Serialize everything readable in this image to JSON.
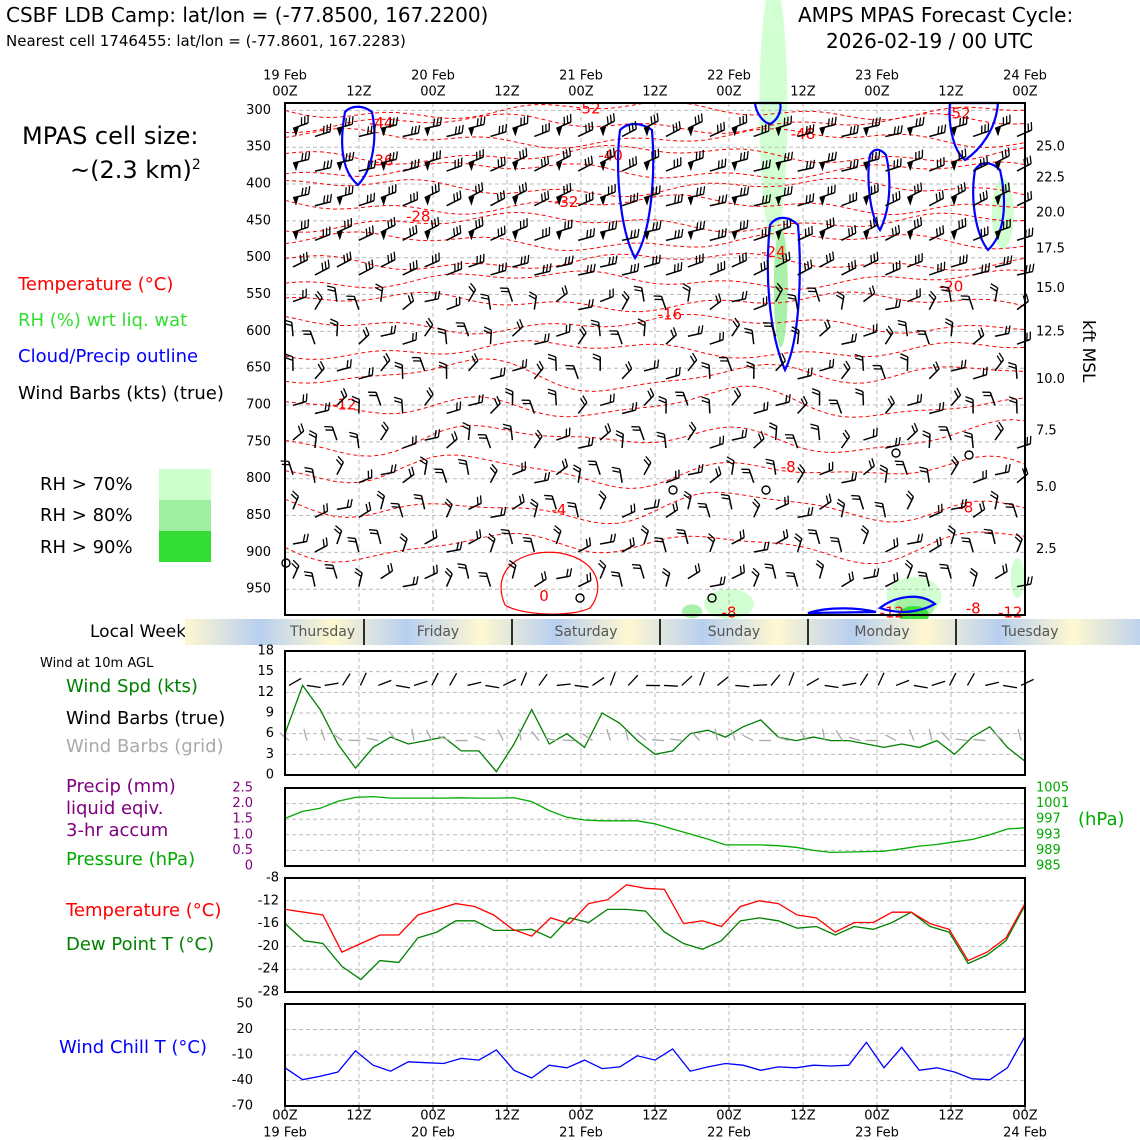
{
  "header": {
    "title_left": "CSBF LDB Camp: lat/lon = (-77.8500, 167.2200)",
    "subtitle_left": "Nearest cell 1746455: lat/lon = (-77.8601, 167.2283)",
    "title_right_1": "AMPS MPAS Forecast Cycle:",
    "title_right_2": "2026-02-19 / 00 UTC"
  },
  "legend": {
    "cell_size_1": "MPAS cell size:",
    "cell_size_2": "~(2.3 km)",
    "cell_size_sup": "2",
    "temperature": "Temperature (°C)",
    "rh": "RH (%) wrt liq. wat",
    "cloud": "Cloud/Precip outline",
    "barbs": "Wind Barbs (kts) (true)",
    "rh70": "RH > 70%",
    "rh80": "RH > 80%",
    "rh90": "RH > 90%",
    "weekday_label": "Local Weekday",
    "wind10m": "Wind at 10m AGL",
    "wind_spd": "Wind Spd (kts)",
    "barbs_true": "Wind Barbs (true)",
    "barbs_grid": "Wind Barbs (grid)",
    "precip_1": "Precip (mm)",
    "precip_2": "liquid eqiv.",
    "precip_3": "3-hr accum",
    "pressure": "Pressure (hPa)",
    "temp2": "Temperature (°C)",
    "dew": "Dew Point T (°C)",
    "windchill": "Wind Chill T (°C)",
    "kft": "kft MSL",
    "hpa": "(hPa)"
  },
  "colors": {
    "temp": "#ff0000",
    "rh_text": "#33dd33",
    "cloud": "#0000ff",
    "wind_spd": "#008000",
    "dew": "#008000",
    "precip": "#800080",
    "pressure": "#00aa00",
    "windchill": "#0000ff",
    "rh70": "#ccffcc",
    "rh80": "#a0eea0",
    "rh90": "#33dd33"
  },
  "weekdays": [
    "Thursday",
    "Friday",
    "Saturday",
    "Sunday",
    "Monday",
    "Tuesday"
  ],
  "chart_data": [
    {
      "type": "line",
      "title": "Time-height cross section (temperature contours, wind barbs)",
      "x_ticks_top": [
        {
          "l1": "19 Feb",
          "l2": "00Z"
        },
        {
          "l1": "",
          "l2": "12Z"
        },
        {
          "l1": "20 Feb",
          "l2": "00Z"
        },
        {
          "l1": "",
          "l2": "12Z"
        },
        {
          "l1": "21 Feb",
          "l2": "00Z"
        },
        {
          "l1": "",
          "l2": "12Z"
        },
        {
          "l1": "22 Feb",
          "l2": "00Z"
        },
        {
          "l1": "",
          "l2": "12Z"
        },
        {
          "l1": "23 Feb",
          "l2": "00Z"
        },
        {
          "l1": "",
          "l2": "12Z"
        },
        {
          "l1": "24 Feb",
          "l2": "00Z"
        }
      ],
      "y_left_label_ticks": [
        "300",
        "350",
        "400",
        "450",
        "500",
        "550",
        "600",
        "650",
        "700",
        "750",
        "800",
        "850",
        "900",
        "950"
      ],
      "y_left_values": [
        300,
        350,
        400,
        450,
        500,
        550,
        600,
        650,
        700,
        750,
        800,
        850,
        900,
        950
      ],
      "ylim": [
        985,
        290
      ],
      "y_right_ticks": [
        {
          "label": "25.0",
          "hpa": 350
        },
        {
          "label": "22.5",
          "hpa": 392
        },
        {
          "label": "20.0",
          "hpa": 439
        },
        {
          "label": "17.5",
          "hpa": 488
        },
        {
          "label": "15.0",
          "hpa": 542
        },
        {
          "label": "12.5",
          "hpa": 601
        },
        {
          "label": "10.0",
          "hpa": 665
        },
        {
          "label": "7.5",
          "hpa": 735
        },
        {
          "label": "5.0",
          "hpa": 812
        },
        {
          "label": "2.5",
          "hpa": 896
        }
      ],
      "temp_contours": [
        {
          "label": "-52",
          "x": 2.05,
          "p": 298
        },
        {
          "label": "-52",
          "x": 4.55,
          "p": 305
        },
        {
          "label": "-48",
          "x": 3.5,
          "p": 333
        },
        {
          "label": "-44",
          "x": 0.65,
          "p": 318
        },
        {
          "label": "-40",
          "x": 2.2,
          "p": 362
        },
        {
          "label": "-36",
          "x": 0.65,
          "p": 369
        },
        {
          "label": "-32",
          "x": 1.9,
          "p": 425
        },
        {
          "label": "-28",
          "x": 0.9,
          "p": 445
        },
        {
          "label": "-24",
          "x": 3.3,
          "p": 493
        },
        {
          "label": "-20",
          "x": 4.5,
          "p": 540
        },
        {
          "label": "-16",
          "x": 2.6,
          "p": 578
        },
        {
          "label": "-12",
          "x": 0.4,
          "p": 700
        },
        {
          "label": "-8",
          "x": 3.4,
          "p": 785
        },
        {
          "label": "-8",
          "x": 4.6,
          "p": 840
        },
        {
          "label": "-4",
          "x": 1.85,
          "p": 843
        },
        {
          "label": "0",
          "x": 1.75,
          "p": 960
        },
        {
          "label": "-8",
          "x": 3.0,
          "p": 984
        },
        {
          "label": "-8",
          "x": 4.65,
          "p": 977
        },
        {
          "label": "-12",
          "x": 4.1,
          "p": 987
        },
        {
          "label": "-12",
          "x": 4.9,
          "p": 985
        }
      ]
    },
    {
      "type": "line",
      "title": "Wind at 10m AGL",
      "ylabel": "Wind Spd (kts)",
      "ylim": [
        0,
        18
      ],
      "y_ticks": [
        "0",
        "3",
        "6",
        "9",
        "12",
        "15",
        "18"
      ],
      "series": [
        {
          "name": "Wind Spd (kts)",
          "x_hours_step": 6,
          "values": [
            6,
            13,
            9.5,
            4.5,
            1,
            4,
            5.5,
            4.5,
            5,
            5.5,
            3.5,
            3.5,
            0.5,
            4.5,
            9.5,
            4.5,
            6,
            4,
            9,
            7.5,
            5,
            3,
            3.5,
            6,
            6.5,
            5.5,
            7,
            8,
            5.5,
            5,
            5.5,
            5,
            5,
            4.5,
            4,
            4.5,
            4,
            5,
            3,
            5.5,
            7,
            4,
            2
          ]
        }
      ]
    },
    {
      "type": "line",
      "title": "Precip / Pressure",
      "y_left_ticks": [
        "0",
        "0.5",
        "1.0",
        "1.5",
        "2.0",
        "2.5"
      ],
      "y_right_ticks": [
        "985",
        "989",
        "993",
        "997",
        "1001",
        "1005"
      ],
      "series": [
        {
          "name": "Pressure (hPa)",
          "x_hours_step": 6,
          "values": [
            997.2,
            999,
            999.8,
            1001.6,
            1002.6,
            1002.8,
            1002.4,
            1002.4,
            1002.4,
            1002.4,
            1002.5,
            1002.4,
            1002.4,
            1002.5,
            1001.5,
            999.2,
            997.5,
            996.8,
            996.6,
            996.6,
            996.6,
            995.8,
            994.5,
            993.2,
            991.9,
            990.4,
            990.4,
            990.4,
            990.2,
            989.8,
            989.0,
            988.5,
            988.6,
            988.7,
            988.8,
            989.4,
            990.1,
            990.5,
            991.2,
            991.8,
            993,
            994.5,
            994.8
          ]
        }
      ]
    },
    {
      "type": "line",
      "title": "Temperature / Dew Point",
      "ylim": [
        -28,
        -8
      ],
      "y_ticks": [
        "-28",
        "-24",
        "-20",
        "-16",
        "-12",
        "-8"
      ],
      "series": [
        {
          "name": "Temperature (°C)",
          "x_hours_step": 6,
          "values": [
            -13.5,
            -14,
            -14.5,
            -21,
            -19.5,
            -18,
            -18,
            -14.5,
            -13.5,
            -12.5,
            -13,
            -14.5,
            -17,
            -18.2,
            -15,
            -16,
            -12.5,
            -11.8,
            -9.2,
            -9.8,
            -10,
            -16,
            -15.5,
            -16.5,
            -13,
            -12,
            -12.5,
            -14.5,
            -15,
            -17.5,
            -15.8,
            -15.8,
            -14,
            -14,
            -16,
            -17,
            -22.5,
            -21,
            -18.5,
            -12.5
          ]
        },
        {
          "name": "Dew Point T (°C)",
          "x_hours_step": 6,
          "values": [
            -16,
            -19,
            -19.5,
            -23.5,
            -25.8,
            -22.5,
            -22.8,
            -18.5,
            -17.5,
            -15.5,
            -15.5,
            -17.2,
            -17.2,
            -17,
            -18.5,
            -15,
            -15.8,
            -13.5,
            -13.5,
            -13.8,
            -17.5,
            -19.5,
            -20.5,
            -19,
            -15.5,
            -15,
            -15.5,
            -16.8,
            -16.5,
            -18,
            -16.5,
            -17,
            -15.8,
            -14,
            -16.5,
            -17.5,
            -23,
            -21.5,
            -19,
            -12.8
          ]
        }
      ]
    },
    {
      "type": "line",
      "title": "Wind Chill",
      "ylim": [
        -70,
        50
      ],
      "y_ticks": [
        "-70",
        "-40",
        "-10",
        "20",
        "50"
      ],
      "series": [
        {
          "name": "Wind Chill T (°C)",
          "x_hours_step": 6,
          "values": [
            -25,
            -39,
            -35,
            -30,
            -5,
            -22,
            -29,
            -18,
            -19,
            -20,
            -14,
            -16,
            -4,
            -28,
            -37,
            -22,
            -25,
            -16,
            -26,
            -24,
            -11,
            -16,
            -3,
            -29,
            -24,
            -20,
            -22,
            -28,
            -24,
            -25,
            -22,
            -23,
            -22,
            5,
            -25,
            -1,
            -28,
            -25,
            -30,
            -38,
            -39,
            -25,
            12
          ]
        }
      ]
    },
    {
      "type": "line",
      "title": "Bottom time axis",
      "x_ticks_bottom": [
        {
          "l1": "00Z",
          "l2": "19 Feb"
        },
        {
          "l1": "12Z",
          "l2": ""
        },
        {
          "l1": "00Z",
          "l2": "20 Feb"
        },
        {
          "l1": "12Z",
          "l2": ""
        },
        {
          "l1": "00Z",
          "l2": "21 Feb"
        },
        {
          "l1": "12Z",
          "l2": ""
        },
        {
          "l1": "00Z",
          "l2": "22 Feb"
        },
        {
          "l1": "12Z",
          "l2": ""
        },
        {
          "l1": "00Z",
          "l2": "23 Feb"
        },
        {
          "l1": "12Z",
          "l2": ""
        },
        {
          "l1": "00Z",
          "l2": "24 Feb"
        }
      ]
    }
  ]
}
